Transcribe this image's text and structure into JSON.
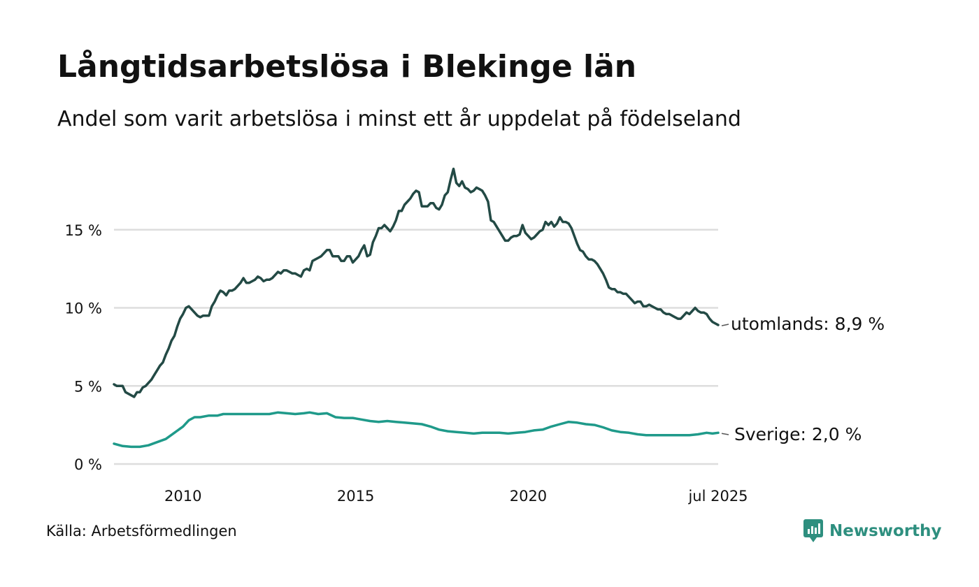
{
  "title": "Långtidsarbetslösa i Blekinge län",
  "subtitle": "Andel som varit arbetslösa i minst ett år uppdelat på födelseland",
  "source": "Källa: Arbetsförmedlingen",
  "brand": "Newsworthy",
  "colors": {
    "utomlands": "#234a45",
    "sverige": "#1f9a8a",
    "grid": "#dddddd",
    "brand": "#2e8f7f"
  },
  "chart_data": {
    "type": "line",
    "title": "Långtidsarbetslösa i Blekinge län",
    "subtitle": "Andel som varit arbetslösa i minst ett år uppdelat på födelseland",
    "xlabel": "",
    "ylabel": "",
    "ylim": [
      0,
      19
    ],
    "xlim": [
      "2008-01",
      "2025-07"
    ],
    "grid": "horizontal",
    "y_ticks": [
      {
        "value": 0,
        "label": "0 %"
      },
      {
        "value": 5,
        "label": "5 %"
      },
      {
        "value": 10,
        "label": "10 %"
      },
      {
        "value": 15,
        "label": "15 %"
      }
    ],
    "x_ticks": [
      {
        "date": "2010-01",
        "label": "2010"
      },
      {
        "date": "2015-01",
        "label": "2015"
      },
      {
        "date": "2020-01",
        "label": "2020"
      },
      {
        "date": "2025-07",
        "label": "jul 2025"
      }
    ],
    "series": [
      {
        "name": "utomlands",
        "end_label": "utomlands: 8,9 %",
        "points": [
          [
            "2008-01",
            5.1
          ],
          [
            "2008-02",
            5.0
          ],
          [
            "2008-03",
            5.0
          ],
          [
            "2008-04",
            5.0
          ],
          [
            "2008-05",
            4.6
          ],
          [
            "2008-06",
            4.5
          ],
          [
            "2008-07",
            4.4
          ],
          [
            "2008-08",
            4.3
          ],
          [
            "2008-09",
            4.6
          ],
          [
            "2008-10",
            4.6
          ],
          [
            "2008-11",
            4.9
          ],
          [
            "2008-12",
            5.0
          ],
          [
            "2009-01",
            5.2
          ],
          [
            "2009-02",
            5.4
          ],
          [
            "2009-03",
            5.7
          ],
          [
            "2009-04",
            6.0
          ],
          [
            "2009-05",
            6.3
          ],
          [
            "2009-06",
            6.5
          ],
          [
            "2009-07",
            7.0
          ],
          [
            "2009-08",
            7.4
          ],
          [
            "2009-09",
            7.9
          ],
          [
            "2009-10",
            8.2
          ],
          [
            "2009-11",
            8.8
          ],
          [
            "2009-12",
            9.3
          ],
          [
            "2010-01",
            9.6
          ],
          [
            "2010-02",
            10.0
          ],
          [
            "2010-03",
            10.1
          ],
          [
            "2010-04",
            9.9
          ],
          [
            "2010-05",
            9.7
          ],
          [
            "2010-06",
            9.5
          ],
          [
            "2010-07",
            9.4
          ],
          [
            "2010-08",
            9.5
          ],
          [
            "2010-09",
            9.5
          ],
          [
            "2010-10",
            9.5
          ],
          [
            "2010-11",
            10.1
          ],
          [
            "2010-12",
            10.4
          ],
          [
            "2011-01",
            10.8
          ],
          [
            "2011-02",
            11.1
          ],
          [
            "2011-03",
            11.0
          ],
          [
            "2011-04",
            10.8
          ],
          [
            "2011-05",
            11.1
          ],
          [
            "2011-06",
            11.1
          ],
          [
            "2011-07",
            11.2
          ],
          [
            "2011-08",
            11.4
          ],
          [
            "2011-09",
            11.6
          ],
          [
            "2011-10",
            11.9
          ],
          [
            "2011-11",
            11.6
          ],
          [
            "2011-12",
            11.6
          ],
          [
            "2012-01",
            11.7
          ],
          [
            "2012-02",
            11.8
          ],
          [
            "2012-03",
            12.0
          ],
          [
            "2012-04",
            11.9
          ],
          [
            "2012-05",
            11.7
          ],
          [
            "2012-06",
            11.8
          ],
          [
            "2012-07",
            11.8
          ],
          [
            "2012-08",
            11.9
          ],
          [
            "2012-09",
            12.1
          ],
          [
            "2012-10",
            12.3
          ],
          [
            "2012-11",
            12.2
          ],
          [
            "2012-12",
            12.4
          ],
          [
            "2013-01",
            12.4
          ],
          [
            "2013-02",
            12.3
          ],
          [
            "2013-03",
            12.2
          ],
          [
            "2013-04",
            12.2
          ],
          [
            "2013-05",
            12.1
          ],
          [
            "2013-06",
            12.0
          ],
          [
            "2013-07",
            12.4
          ],
          [
            "2013-08",
            12.5
          ],
          [
            "2013-09",
            12.4
          ],
          [
            "2013-10",
            13.0
          ],
          [
            "2013-11",
            13.1
          ],
          [
            "2013-12",
            13.2
          ],
          [
            "2014-01",
            13.3
          ],
          [
            "2014-02",
            13.5
          ],
          [
            "2014-03",
            13.7
          ],
          [
            "2014-04",
            13.7
          ],
          [
            "2014-05",
            13.3
          ],
          [
            "2014-06",
            13.3
          ],
          [
            "2014-07",
            13.3
          ],
          [
            "2014-08",
            13.0
          ],
          [
            "2014-09",
            13.0
          ],
          [
            "2014-10",
            13.3
          ],
          [
            "2014-11",
            13.3
          ],
          [
            "2014-12",
            12.9
          ],
          [
            "2015-01",
            13.1
          ],
          [
            "2015-02",
            13.3
          ],
          [
            "2015-03",
            13.7
          ],
          [
            "2015-04",
            14.0
          ],
          [
            "2015-05",
            13.3
          ],
          [
            "2015-06",
            13.4
          ],
          [
            "2015-07",
            14.2
          ],
          [
            "2015-08",
            14.6
          ],
          [
            "2015-09",
            15.1
          ],
          [
            "2015-10",
            15.1
          ],
          [
            "2015-11",
            15.3
          ],
          [
            "2015-12",
            15.1
          ],
          [
            "2016-01",
            14.9
          ],
          [
            "2016-02",
            15.2
          ],
          [
            "2016-03",
            15.6
          ],
          [
            "2016-04",
            16.2
          ],
          [
            "2016-05",
            16.2
          ],
          [
            "2016-06",
            16.6
          ],
          [
            "2016-07",
            16.8
          ],
          [
            "2016-08",
            17.0
          ],
          [
            "2016-09",
            17.3
          ],
          [
            "2016-10",
            17.5
          ],
          [
            "2016-11",
            17.4
          ],
          [
            "2016-12",
            16.5
          ],
          [
            "2017-01",
            16.5
          ],
          [
            "2017-02",
            16.5
          ],
          [
            "2017-03",
            16.7
          ],
          [
            "2017-04",
            16.7
          ],
          [
            "2017-05",
            16.4
          ],
          [
            "2017-06",
            16.3
          ],
          [
            "2017-07",
            16.6
          ],
          [
            "2017-08",
            17.2
          ],
          [
            "2017-09",
            17.4
          ],
          [
            "2017-10",
            18.2
          ],
          [
            "2017-11",
            18.9
          ],
          [
            "2017-12",
            18.0
          ],
          [
            "2018-01",
            17.8
          ],
          [
            "2018-02",
            18.1
          ],
          [
            "2018-03",
            17.7
          ],
          [
            "2018-04",
            17.6
          ],
          [
            "2018-05",
            17.4
          ],
          [
            "2018-06",
            17.5
          ],
          [
            "2018-07",
            17.7
          ],
          [
            "2018-08",
            17.6
          ],
          [
            "2018-09",
            17.5
          ],
          [
            "2018-10",
            17.2
          ],
          [
            "2018-11",
            16.8
          ],
          [
            "2018-12",
            15.6
          ],
          [
            "2019-01",
            15.5
          ],
          [
            "2019-02",
            15.2
          ],
          [
            "2019-03",
            14.9
          ],
          [
            "2019-04",
            14.6
          ],
          [
            "2019-05",
            14.3
          ],
          [
            "2019-06",
            14.3
          ],
          [
            "2019-07",
            14.5
          ],
          [
            "2019-08",
            14.6
          ],
          [
            "2019-09",
            14.6
          ],
          [
            "2019-10",
            14.7
          ],
          [
            "2019-11",
            15.3
          ],
          [
            "2019-12",
            14.8
          ],
          [
            "2020-01",
            14.6
          ],
          [
            "2020-02",
            14.4
          ],
          [
            "2020-03",
            14.5
          ],
          [
            "2020-04",
            14.7
          ],
          [
            "2020-05",
            14.9
          ],
          [
            "2020-06",
            15.0
          ],
          [
            "2020-07",
            15.5
          ],
          [
            "2020-08",
            15.3
          ],
          [
            "2020-09",
            15.5
          ],
          [
            "2020-10",
            15.2
          ],
          [
            "2020-11",
            15.4
          ],
          [
            "2020-12",
            15.8
          ],
          [
            "2021-01",
            15.5
          ],
          [
            "2021-02",
            15.5
          ],
          [
            "2021-03",
            15.4
          ],
          [
            "2021-04",
            15.1
          ],
          [
            "2021-05",
            14.6
          ],
          [
            "2021-06",
            14.1
          ],
          [
            "2021-07",
            13.7
          ],
          [
            "2021-08",
            13.6
          ],
          [
            "2021-09",
            13.3
          ],
          [
            "2021-10",
            13.1
          ],
          [
            "2021-11",
            13.1
          ],
          [
            "2021-12",
            13.0
          ],
          [
            "2022-01",
            12.8
          ],
          [
            "2022-02",
            12.5
          ],
          [
            "2022-03",
            12.2
          ],
          [
            "2022-04",
            11.8
          ],
          [
            "2022-05",
            11.3
          ],
          [
            "2022-06",
            11.2
          ],
          [
            "2022-07",
            11.2
          ],
          [
            "2022-08",
            11.0
          ],
          [
            "2022-09",
            11.0
          ],
          [
            "2022-10",
            10.9
          ],
          [
            "2022-11",
            10.9
          ],
          [
            "2022-12",
            10.7
          ],
          [
            "2023-01",
            10.5
          ],
          [
            "2023-02",
            10.3
          ],
          [
            "2023-03",
            10.4
          ],
          [
            "2023-04",
            10.4
          ],
          [
            "2023-05",
            10.1
          ],
          [
            "2023-06",
            10.1
          ],
          [
            "2023-07",
            10.2
          ],
          [
            "2023-08",
            10.1
          ],
          [
            "2023-09",
            10.0
          ],
          [
            "2023-10",
            9.9
          ],
          [
            "2023-11",
            9.9
          ],
          [
            "2023-12",
            9.7
          ],
          [
            "2024-01",
            9.6
          ],
          [
            "2024-02",
            9.6
          ],
          [
            "2024-03",
            9.5
          ],
          [
            "2024-04",
            9.4
          ],
          [
            "2024-05",
            9.3
          ],
          [
            "2024-06",
            9.3
          ],
          [
            "2024-07",
            9.5
          ],
          [
            "2024-08",
            9.7
          ],
          [
            "2024-09",
            9.6
          ],
          [
            "2024-10",
            9.8
          ],
          [
            "2024-11",
            10.0
          ],
          [
            "2024-12",
            9.8
          ],
          [
            "2025-01",
            9.7
          ],
          [
            "2025-02",
            9.7
          ],
          [
            "2025-03",
            9.6
          ],
          [
            "2025-04",
            9.3
          ],
          [
            "2025-05",
            9.1
          ],
          [
            "2025-06",
            9.0
          ],
          [
            "2025-07",
            8.9
          ]
        ]
      },
      {
        "name": "Sverige",
        "end_label": "Sverige: 2,0 %",
        "points": [
          [
            "2008-01",
            1.3
          ],
          [
            "2008-04",
            1.15
          ],
          [
            "2008-07",
            1.1
          ],
          [
            "2008-10",
            1.1
          ],
          [
            "2009-01",
            1.2
          ],
          [
            "2009-04",
            1.4
          ],
          [
            "2009-07",
            1.6
          ],
          [
            "2009-10",
            2.0
          ],
          [
            "2010-01",
            2.4
          ],
          [
            "2010-03",
            2.8
          ],
          [
            "2010-05",
            3.0
          ],
          [
            "2010-07",
            3.0
          ],
          [
            "2010-10",
            3.1
          ],
          [
            "2011-01",
            3.1
          ],
          [
            "2011-03",
            3.2
          ],
          [
            "2011-06",
            3.2
          ],
          [
            "2011-09",
            3.2
          ],
          [
            "2012-01",
            3.2
          ],
          [
            "2012-04",
            3.2
          ],
          [
            "2012-07",
            3.2
          ],
          [
            "2012-10",
            3.3
          ],
          [
            "2013-01",
            3.25
          ],
          [
            "2013-04",
            3.2
          ],
          [
            "2013-07",
            3.25
          ],
          [
            "2013-09",
            3.3
          ],
          [
            "2013-12",
            3.2
          ],
          [
            "2014-03",
            3.25
          ],
          [
            "2014-06",
            3.0
          ],
          [
            "2014-09",
            2.95
          ],
          [
            "2014-12",
            2.95
          ],
          [
            "2015-03",
            2.85
          ],
          [
            "2015-06",
            2.75
          ],
          [
            "2015-09",
            2.7
          ],
          [
            "2015-12",
            2.75
          ],
          [
            "2016-03",
            2.7
          ],
          [
            "2016-06",
            2.65
          ],
          [
            "2016-09",
            2.6
          ],
          [
            "2016-12",
            2.55
          ],
          [
            "2017-03",
            2.4
          ],
          [
            "2017-06",
            2.2
          ],
          [
            "2017-09",
            2.1
          ],
          [
            "2017-12",
            2.05
          ],
          [
            "2018-03",
            2.0
          ],
          [
            "2018-06",
            1.95
          ],
          [
            "2018-09",
            2.0
          ],
          [
            "2018-12",
            2.0
          ],
          [
            "2019-03",
            2.0
          ],
          [
            "2019-06",
            1.95
          ],
          [
            "2019-09",
            2.0
          ],
          [
            "2019-12",
            2.05
          ],
          [
            "2020-03",
            2.15
          ],
          [
            "2020-06",
            2.2
          ],
          [
            "2020-09",
            2.4
          ],
          [
            "2020-12",
            2.55
          ],
          [
            "2021-03",
            2.7
          ],
          [
            "2021-06",
            2.65
          ],
          [
            "2021-09",
            2.55
          ],
          [
            "2021-12",
            2.5
          ],
          [
            "2022-03",
            2.35
          ],
          [
            "2022-06",
            2.15
          ],
          [
            "2022-09",
            2.05
          ],
          [
            "2022-12",
            2.0
          ],
          [
            "2023-03",
            1.9
          ],
          [
            "2023-06",
            1.85
          ],
          [
            "2023-09",
            1.85
          ],
          [
            "2023-12",
            1.85
          ],
          [
            "2024-03",
            1.85
          ],
          [
            "2024-06",
            1.85
          ],
          [
            "2024-09",
            1.85
          ],
          [
            "2024-12",
            1.9
          ],
          [
            "2025-03",
            2.0
          ],
          [
            "2025-05",
            1.95
          ],
          [
            "2025-07",
            2.0
          ]
        ]
      }
    ]
  }
}
